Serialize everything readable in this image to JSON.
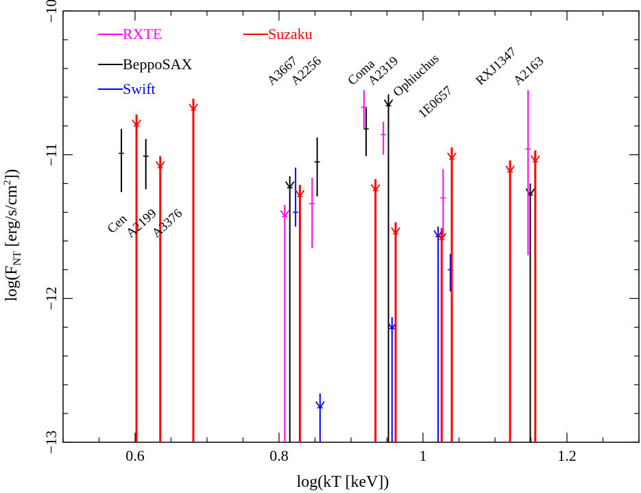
{
  "chart_data": {
    "type": "scatter",
    "xlabel": "log(kT [keV])",
    "ylabel": "log(F_NT [erg/s/cm²])",
    "ylabel_main": "log(F",
    "ylabel_sub": "NT",
    "ylabel_rest": " [erg/s/cm",
    "ylabel_sup": "2",
    "ylabel_end": "])",
    "xlim": [
      0.5,
      1.3
    ],
    "ylim": [
      -13,
      -10
    ],
    "xticks": [
      0.6,
      0.8,
      1,
      1.2
    ],
    "xtick_labels": [
      "0.6",
      "0.8",
      "1",
      "1.2"
    ],
    "yticks": [
      -13,
      -12,
      -11,
      -10
    ],
    "ytick_labels": [
      "−13",
      "−12",
      "−11",
      "−10"
    ],
    "legend": [
      {
        "name": "RXTE",
        "color": "#ff00ff"
      },
      {
        "name": "BeppoSAX",
        "color": "#000000"
      },
      {
        "name": "Swift",
        "color": "#0000ff"
      },
      {
        "name": "Suzaku",
        "color": "#ff0000"
      }
    ],
    "series": [
      {
        "name": "RXTE",
        "color": "#ff00ff",
        "points": [
          {
            "x": 0.808,
            "y": -11.43,
            "ylo": -13.0,
            "yhi": -11.35,
            "upper_limit": true
          },
          {
            "x": 0.846,
            "y": -11.34,
            "ylo": -11.65,
            "yhi": -11.16
          },
          {
            "x": 0.918,
            "y": -10.67,
            "ylo": -10.82,
            "yhi": -10.55
          },
          {
            "x": 0.945,
            "y": -10.86,
            "ylo": -11.0,
            "yhi": -10.77
          },
          {
            "x": 1.028,
            "y": -11.3,
            "ylo": -11.57,
            "yhi": -11.1
          },
          {
            "x": 1.146,
            "y": -10.96,
            "ylo": -11.7,
            "yhi": -10.55
          }
        ]
      },
      {
        "name": "BeppoSAX",
        "color": "#000000",
        "points": [
          {
            "x": 0.581,
            "y": -10.99,
            "ylo": -11.26,
            "yhi": -10.82
          },
          {
            "x": 0.615,
            "y": -11.01,
            "ylo": -11.24,
            "yhi": -10.89
          },
          {
            "x": 0.815,
            "y": -11.23,
            "ylo": -13.0,
            "yhi": -11.15,
            "upper_limit": true
          },
          {
            "x": 0.853,
            "y": -11.05,
            "ylo": -11.29,
            "yhi": -10.88
          },
          {
            "x": 0.921,
            "y": -10.82,
            "ylo": -11.01,
            "yhi": -10.67
          },
          {
            "x": 0.952,
            "y": -10.66,
            "ylo": -13.0,
            "yhi": -10.58,
            "upper_limit": true
          },
          {
            "x": 1.149,
            "y": -11.28,
            "ylo": -13.0,
            "yhi": -11.2,
            "upper_limit": true
          }
        ]
      },
      {
        "name": "Swift",
        "color": "#0000ff",
        "points": [
          {
            "x": 0.823,
            "y": -11.4,
            "ylo": -11.5,
            "yhi": -11.09
          },
          {
            "x": 0.857,
            "y": -12.76,
            "ylo": -13.0,
            "yhi": -12.66,
            "upper_limit": true
          },
          {
            "x": 0.957,
            "y": -12.21,
            "ylo": -13.0,
            "yhi": -12.13,
            "upper_limit": true
          },
          {
            "x": 1.021,
            "y": -11.57,
            "ylo": -13.0,
            "yhi": -11.5,
            "upper_limit": true
          },
          {
            "x": 1.038,
            "y": -11.8,
            "ylo": -11.95,
            "yhi": -11.69
          }
        ]
      },
      {
        "name": "Suzaku",
        "color": "#ff0000",
        "points": [
          {
            "x": 0.602,
            "y": -10.8,
            "ylo": -13.0,
            "yhi": -10.72,
            "upper_limit": true
          },
          {
            "x": 0.635,
            "y": -11.09,
            "ylo": -13.0,
            "yhi": -11.01,
            "upper_limit": true
          },
          {
            "x": 0.681,
            "y": -10.69,
            "ylo": -13.0,
            "yhi": -10.61,
            "upper_limit": true
          },
          {
            "x": 0.829,
            "y": -11.29,
            "ylo": -13.0,
            "yhi": -11.21,
            "upper_limit": true
          },
          {
            "x": 0.934,
            "y": -11.25,
            "ylo": -13.0,
            "yhi": -11.17,
            "upper_limit": true
          },
          {
            "x": 0.962,
            "y": -11.55,
            "ylo": -13.0,
            "yhi": -11.47,
            "upper_limit": true
          },
          {
            "x": 1.026,
            "y": -11.59,
            "ylo": -13.0,
            "yhi": -11.51,
            "upper_limit": true
          },
          {
            "x": 1.04,
            "y": -11.03,
            "ylo": -13.0,
            "yhi": -10.95,
            "upper_limit": true
          },
          {
            "x": 1.121,
            "y": -11.12,
            "ylo": -13.0,
            "yhi": -11.04,
            "upper_limit": true
          },
          {
            "x": 1.156,
            "y": -11.05,
            "ylo": -13.0,
            "yhi": -10.97,
            "upper_limit": true
          }
        ]
      }
    ],
    "annotations": [
      {
        "text": "Cen",
        "x": 0.568,
        "y": -11.55
      },
      {
        "text": "A2199",
        "x": 0.594,
        "y": -11.58
      },
      {
        "text": "A3376",
        "x": 0.63,
        "y": -11.58
      },
      {
        "text": "A3667",
        "x": 0.79,
        "y": -10.52
      },
      {
        "text": "A2256",
        "x": 0.823,
        "y": -10.52
      },
      {
        "text": "Coma",
        "x": 0.902,
        "y": -10.52
      },
      {
        "text": "A2319",
        "x": 0.93,
        "y": -10.52
      },
      {
        "text": "Ophiuchus",
        "x": 0.965,
        "y": -10.6
      },
      {
        "text": "1E0657",
        "x": 1.0,
        "y": -10.75
      },
      {
        "text": "RXJ1347",
        "x": 1.08,
        "y": -10.52
      },
      {
        "text": "A2163",
        "x": 1.132,
        "y": -10.52
      }
    ]
  }
}
